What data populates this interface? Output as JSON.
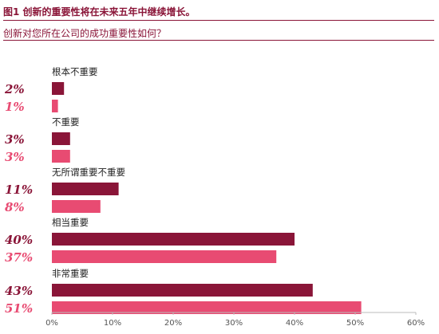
{
  "colors": {
    "series_dark": "#8a1538",
    "series_light": "#e84b72",
    "title": "#8a1538",
    "text": "#222222"
  },
  "chart_data": {
    "type": "bar",
    "orientation": "horizontal",
    "title": "图1 创新的重要性将在未来五年中继续增长。",
    "subtitle": "创新对您所在公司的成功重要性如何？",
    "categories": [
      "根本不重要",
      "不重要",
      "无所谓重要不重要",
      "相当重要",
      "非常重要"
    ],
    "series": [
      {
        "values": [
          2,
          3,
          11,
          40,
          43
        ],
        "labels": [
          "2%",
          "3%",
          "11%",
          "40%",
          "43%"
        ]
      },
      {
        "values": [
          1,
          3,
          8,
          37,
          51
        ],
        "labels": [
          "1%",
          "3%",
          "8%",
          "37%",
          "51%"
        ]
      }
    ],
    "xlim": [
      0,
      60
    ],
    "xticks": [
      "0%",
      "10%",
      "20%",
      "30%",
      "40%",
      "50%",
      "60%"
    ],
    "grid": false,
    "legend": "none"
  }
}
